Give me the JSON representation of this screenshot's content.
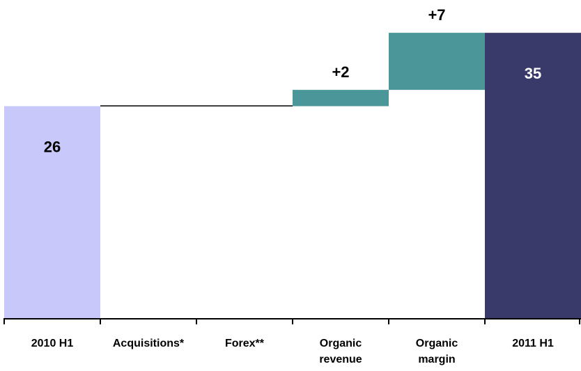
{
  "chart_data": {
    "type": "waterfall",
    "categories": [
      "2010 H1",
      "Acquisitions*",
      "Forex**",
      "Organic revenue",
      "Organic margin",
      "2011 H1"
    ],
    "values": [
      26,
      0.1,
      -0.1,
      2,
      7,
      35
    ],
    "value_labels": [
      "26",
      null,
      null,
      "+2",
      "+7",
      "35"
    ],
    "kinds": [
      "total",
      "delta",
      "delta",
      "delta",
      "delta",
      "total"
    ],
    "colors": [
      "#c8c8fa",
      "#000000",
      "#000000",
      "#4a9698",
      "#4a9698",
      "#3a3a6a"
    ],
    "ylim": [
      0,
      38
    ]
  }
}
